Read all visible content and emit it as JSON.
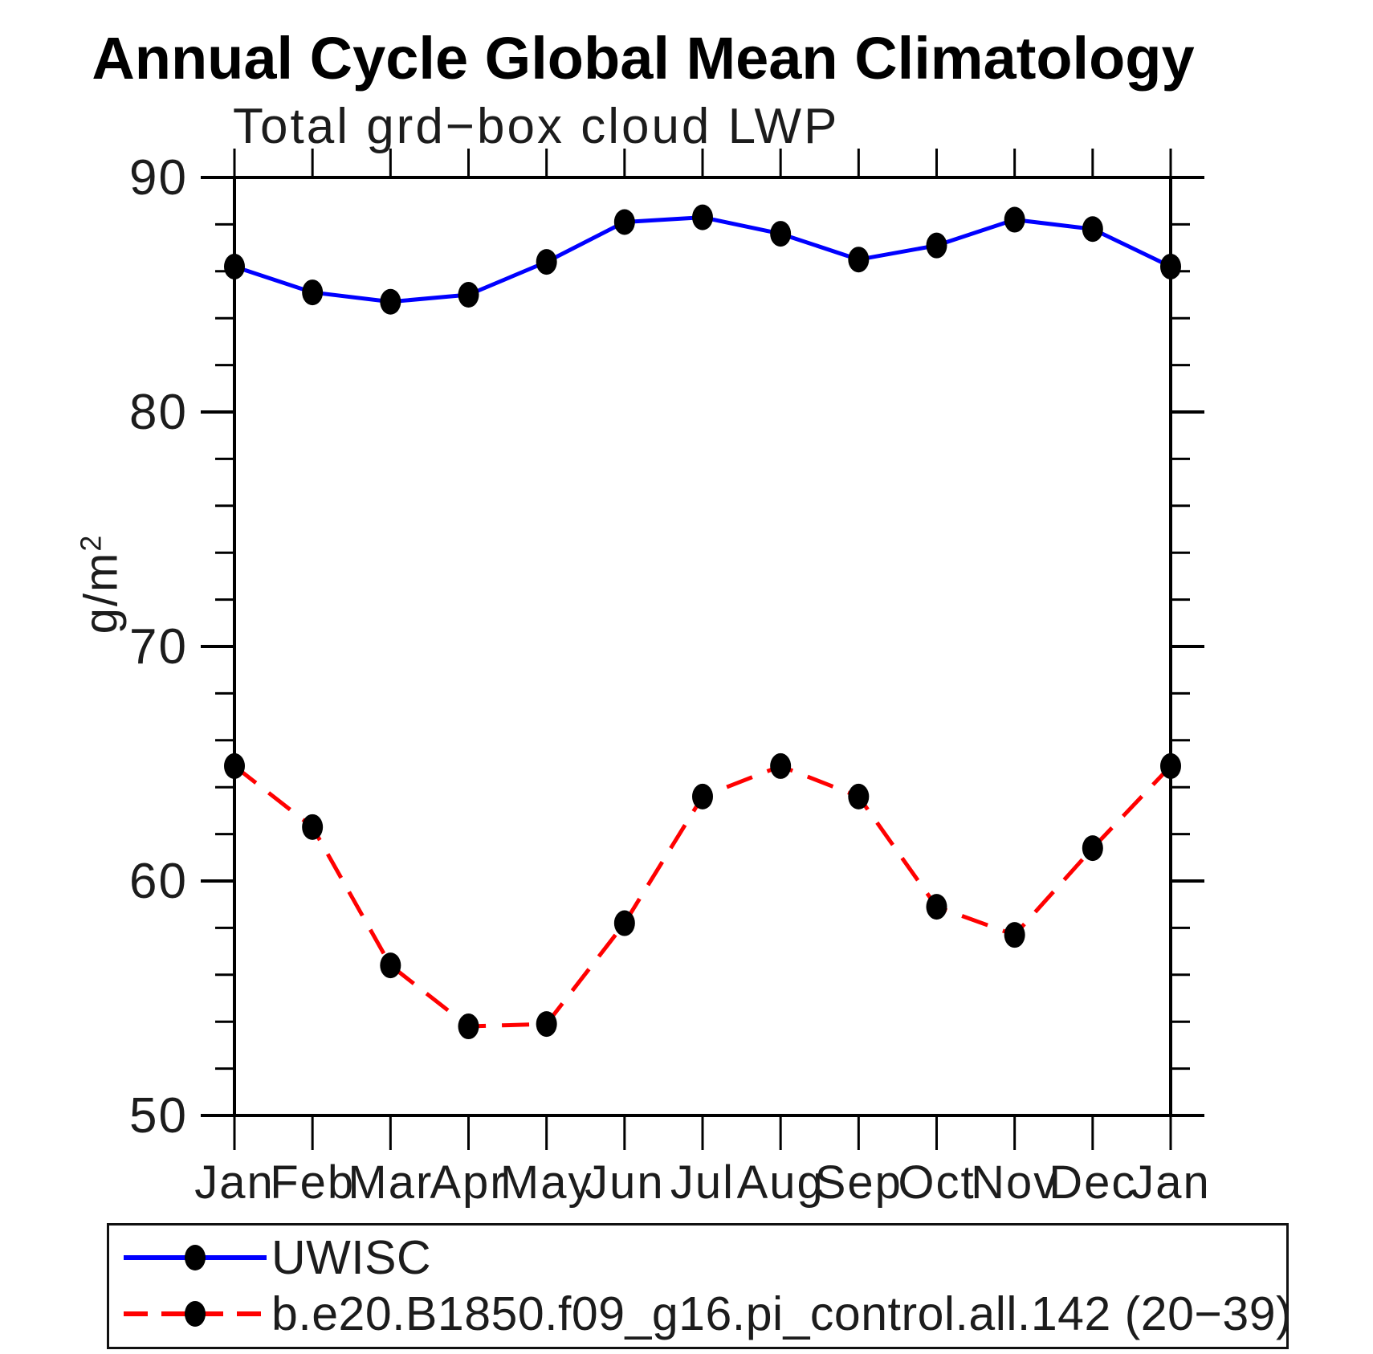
{
  "chart_data": {
    "type": "line",
    "title": "Annual Cycle Global Mean Climatology",
    "subtitle": "Total grd−box cloud LWP",
    "ylabel_base": "g/m",
    "ylabel_exp": "2",
    "x_ticklabels": [
      "Jan",
      "Feb",
      "Mar",
      "Apr",
      "May",
      "Jun",
      "Jul",
      "Aug",
      "Sep",
      "Oct",
      "Nov",
      "Dec",
      "Jan"
    ],
    "ylim": [
      50,
      90
    ],
    "ytick_major": [
      50,
      60,
      70,
      80,
      90
    ],
    "ytick_minor_step": 2,
    "grid": false,
    "legend_position": "bottom",
    "axis_color": "#000000",
    "series": [
      {
        "name": "UWISC",
        "color": "#0000ff",
        "line_style": "solid",
        "marker": "filled-circle",
        "marker_color": "#000000",
        "values": [
          86.2,
          85.1,
          84.7,
          85.0,
          86.4,
          88.1,
          88.3,
          87.6,
          86.5,
          87.1,
          88.2,
          87.8,
          86.2
        ]
      },
      {
        "name": "b.e20.B1850.f09_g16.pi_control.all.142 (20−39)",
        "color": "#ff0000",
        "line_style": "dashed",
        "marker": "filled-circle",
        "marker_color": "#000000",
        "values": [
          64.9,
          62.3,
          56.4,
          53.8,
          53.9,
          58.2,
          63.6,
          64.9,
          63.6,
          58.9,
          57.7,
          61.4,
          64.9
        ]
      }
    ]
  }
}
